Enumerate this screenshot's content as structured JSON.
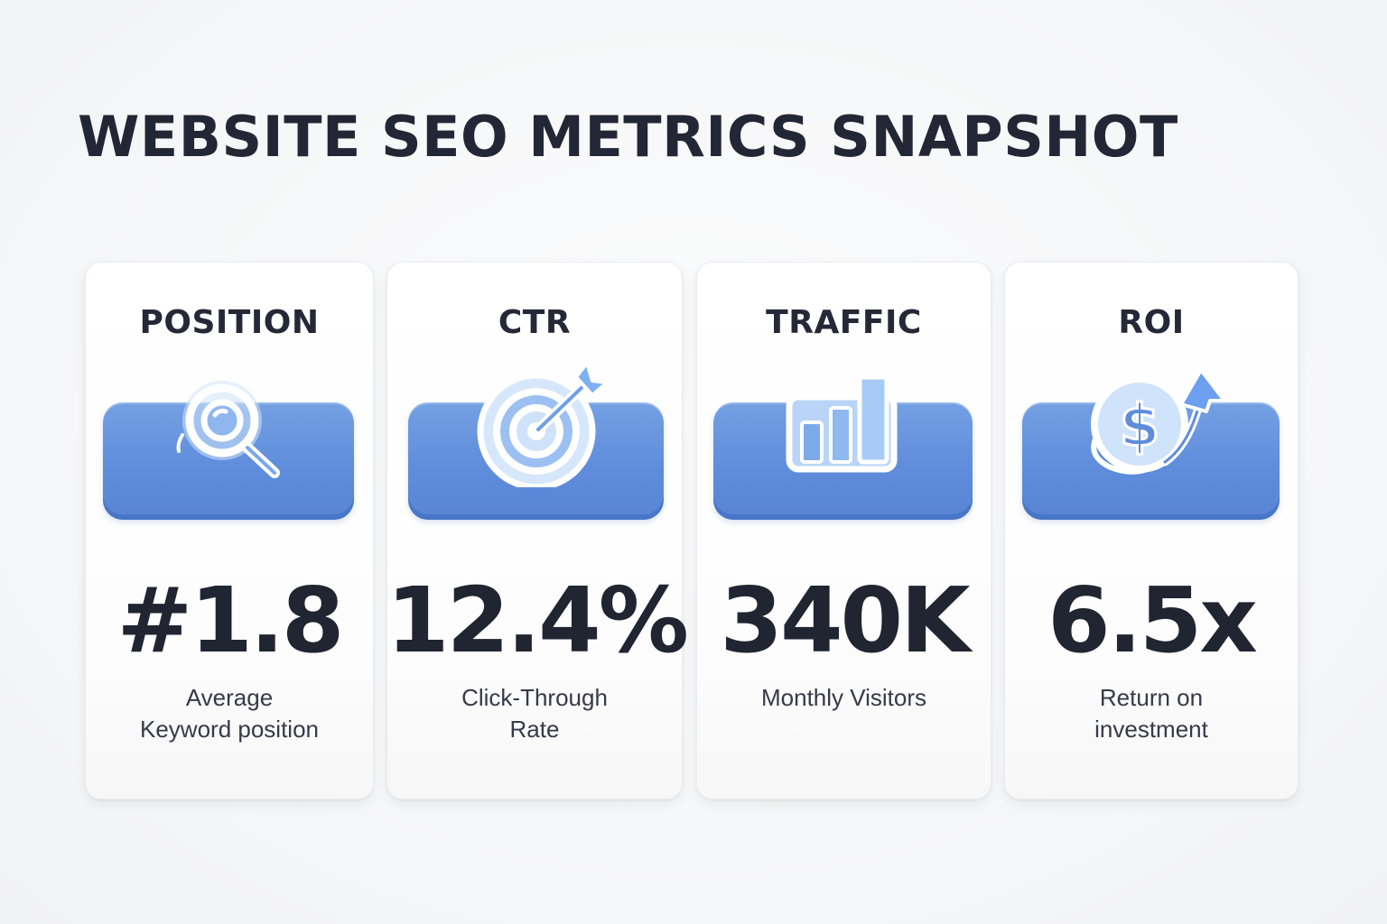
{
  "title": "WEBSITE SEO METRICS SNAPSHOT",
  "accent_color": "#5f8ddb",
  "text_color": "#232634",
  "cards": [
    {
      "label": "POSITION",
      "value": "#1.8",
      "desc_line1": "Average",
      "desc_line2": "Keyword position",
      "icon": "magnifier-icon"
    },
    {
      "label": "CTR",
      "value": "12.4%",
      "desc_line1": "Click-Through",
      "desc_line2": "Rate",
      "icon": "target-arrow-icon"
    },
    {
      "label": "TRAFFIC",
      "value": "340K",
      "desc_line1": "Monthly Visitors",
      "desc_line2": "",
      "icon": "bar-chart-icon"
    },
    {
      "label": "ROI",
      "value": "6.5x",
      "desc_line1": "Return on",
      "desc_line2": "investment",
      "icon": "dollar-growth-icon"
    }
  ]
}
